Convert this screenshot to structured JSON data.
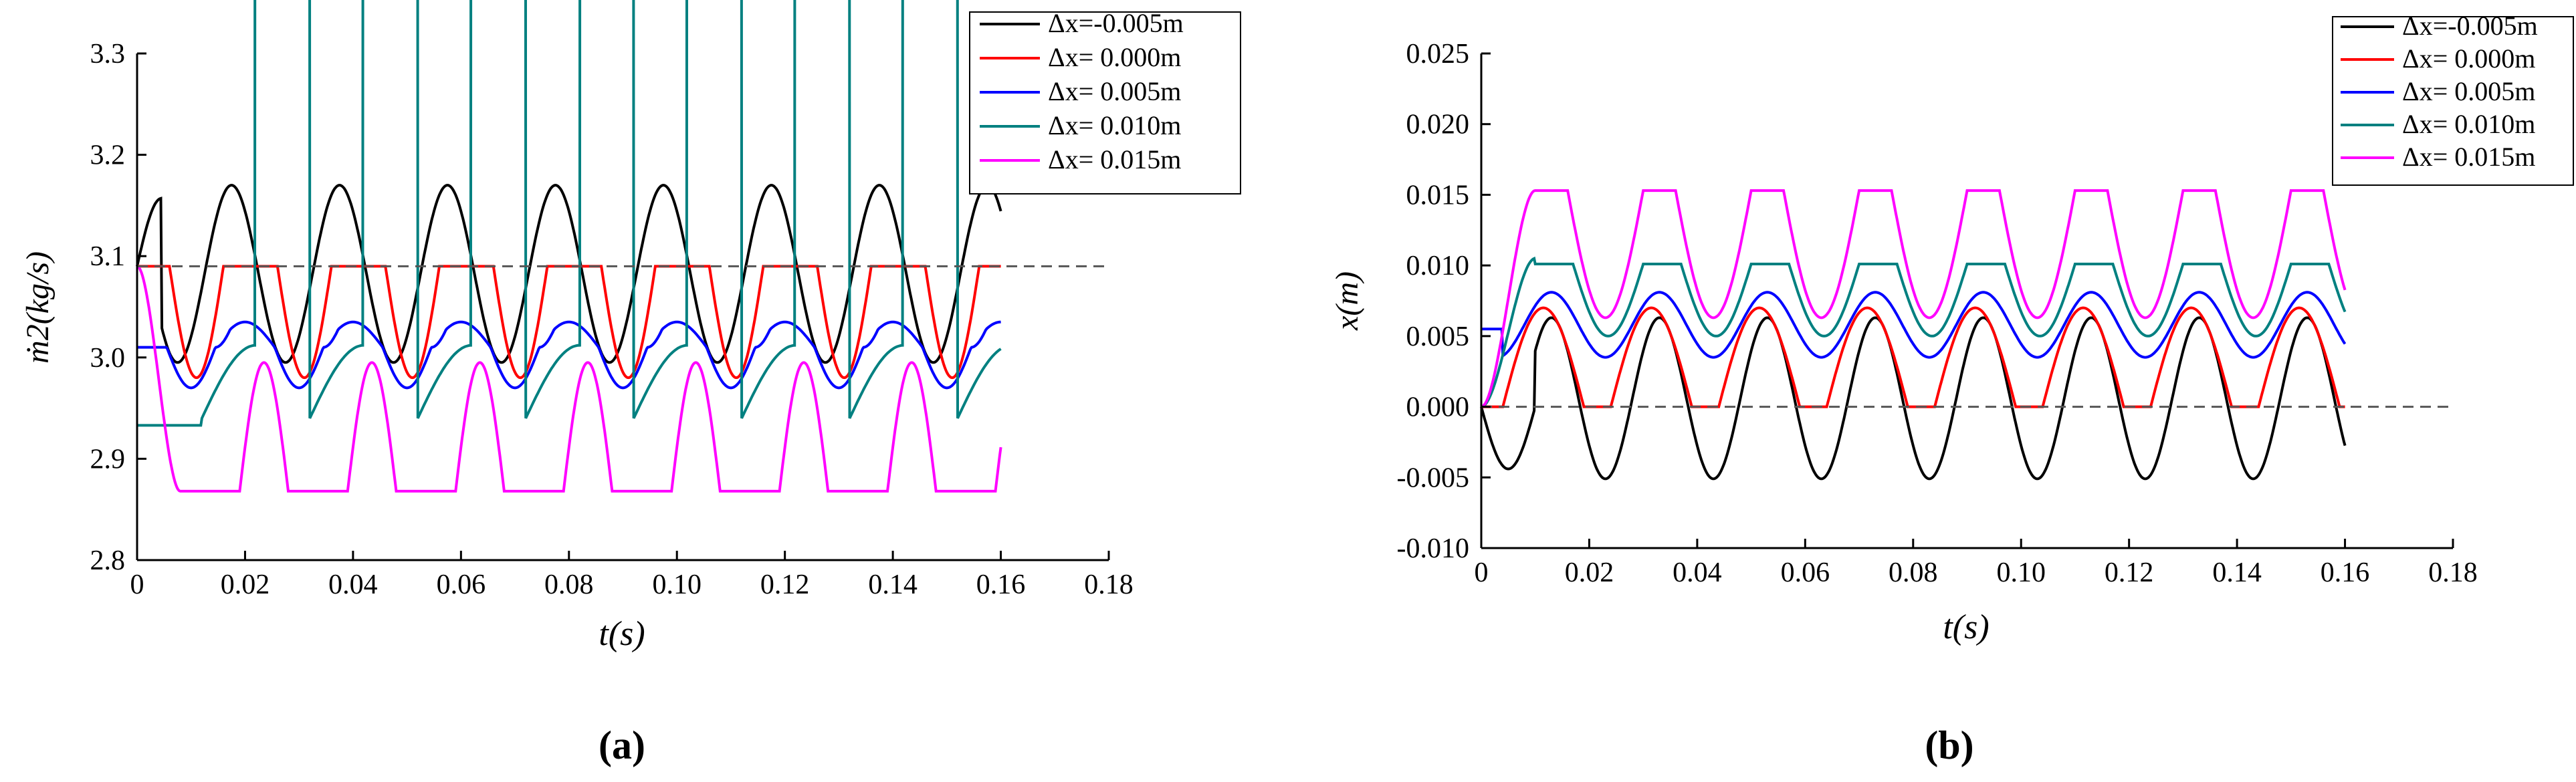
{
  "colors": {
    "series": [
      "#000000",
      "#ff0000",
      "#0000ff",
      "#008080",
      "#ff00ff"
    ],
    "reference_line": "#555555"
  },
  "chart_data": [
    {
      "type": "line",
      "panel_label": "a",
      "panel_label_text": "(a)",
      "xlabel": "t(s)",
      "ylabel": "ṁ2(kg/s)",
      "xlim": [
        0,
        0.18
      ],
      "ylim": [
        2.8,
        3.3
      ],
      "xticks": [
        0,
        0.02,
        0.04,
        0.06,
        0.08,
        0.1,
        0.12,
        0.14,
        0.16,
        0.18
      ],
      "xtick_labels": [
        "0",
        "0.02",
        "0.04",
        "0.06",
        "0.08",
        "0.10",
        "0.12",
        "0.14",
        "0.16",
        "0.18"
      ],
      "yticks": [
        2.8,
        2.9,
        3.0,
        3.1,
        3.2,
        3.3
      ],
      "ytick_labels": [
        "2.8",
        "2.9",
        "3.0",
        "3.1",
        "3.2",
        "3.3"
      ],
      "reference_line_y": 3.09,
      "period": 0.02,
      "t_end": 0.16,
      "series": [
        {
          "name": "Δx=-0.005m",
          "start": 3.09,
          "first_peak": 3.157,
          "peak_flat": 3.17,
          "trough": 2.995
        },
        {
          "name": "Δx= 0.000m",
          "start": 3.09,
          "peak_flat": 3.09,
          "trough": 2.98
        },
        {
          "name": "Δx= 0.005m",
          "start": 3.01,
          "peak_flat": 3.01,
          "bump": 3.035,
          "trough": 2.97
        },
        {
          "name": "Δx= 0.010m",
          "start": 2.933,
          "peak_flat": 2.935,
          "peak": 3.012,
          "trough": 2.94
        },
        {
          "name": "Δx= 0.015m",
          "start": 3.09,
          "flat": 2.868,
          "peak": 2.995,
          "trough": 2.868
        }
      ]
    },
    {
      "type": "line",
      "panel_label": "b",
      "panel_label_text": "(b)",
      "xlabel": "t(s)",
      "ylabel": "x(m)",
      "xlim": [
        0,
        0.18
      ],
      "ylim": [
        -0.01,
        0.025
      ],
      "xticks": [
        0,
        0.02,
        0.04,
        0.06,
        0.08,
        0.1,
        0.12,
        0.14,
        0.16,
        0.18
      ],
      "xtick_labels": [
        "0",
        "0.02",
        "0.04",
        "0.06",
        "0.08",
        "0.10",
        "0.12",
        "0.14",
        "0.16",
        "0.18"
      ],
      "yticks": [
        -0.01,
        -0.005,
        0.0,
        0.005,
        0.01,
        0.015,
        0.02,
        0.025
      ],
      "ytick_labels": [
        "-0.010",
        "-0.005",
        "0.000",
        "0.005",
        "0.010",
        "0.015",
        "0.020",
        "0.025"
      ],
      "reference_line_y": 0.0,
      "period": 0.02,
      "t_end": 0.16,
      "series": [
        {
          "name": "Δx=-0.005m",
          "peak": 0.0063,
          "trough": -0.0051,
          "first_trough": -0.0044
        },
        {
          "name": "Δx= 0.000m",
          "peak": 0.007,
          "flat": 0.0
        },
        {
          "name": "Δx= 0.005m",
          "start": 0.0055,
          "peak": 0.0081,
          "trough": 0.0035
        },
        {
          "name": "Δx= 0.010m",
          "peak": 0.0105,
          "plateau": 0.0101,
          "trough": 0.005
        },
        {
          "name": "Δx= 0.015m",
          "peak": 0.0153,
          "trough": 0.0063
        }
      ]
    }
  ]
}
